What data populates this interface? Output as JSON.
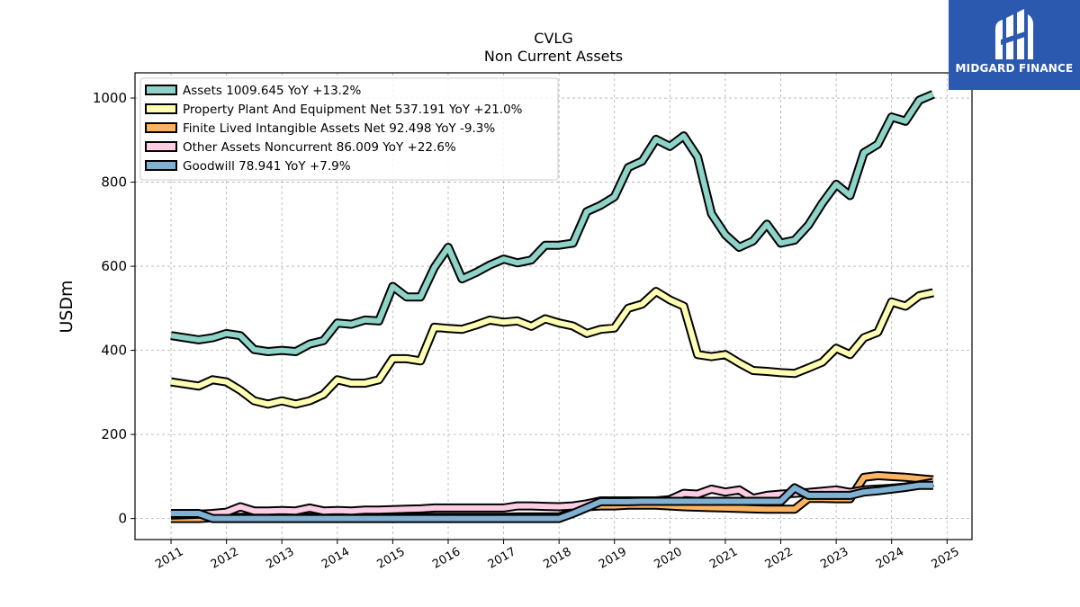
{
  "chart_data": {
    "type": "line",
    "title": "CVLG",
    "subtitle": "Non Current  Assets",
    "ylabel": "USDm",
    "xlabel": "",
    "ylim": [
      -50,
      1060
    ],
    "xlim": [
      2010.35,
      2025.45
    ],
    "yticks": [
      0,
      200,
      400,
      600,
      800,
      1000
    ],
    "xticks": [
      "2011",
      "2012",
      "2013",
      "2014",
      "2015",
      "2016",
      "2017",
      "2018",
      "2019",
      "2020",
      "2021",
      "2022",
      "2023",
      "2024",
      "2025"
    ],
    "grid": true,
    "legend_position": "top-left",
    "series": [
      {
        "name": "Assets",
        "legend_label": "Assets  1009.645 YoY +13.2%",
        "color": "#8dd3c7",
        "x": [
          2011.0,
          2011.5,
          2011.75,
          2012.0,
          2012.25,
          2012.5,
          2012.75,
          2013.0,
          2013.25,
          2013.5,
          2013.75,
          2014.0,
          2014.25,
          2014.5,
          2014.75,
          2015.0,
          2015.25,
          2015.5,
          2015.75,
          2016.0,
          2016.25,
          2016.5,
          2016.75,
          2017.0,
          2017.25,
          2017.5,
          2017.75,
          2018.0,
          2018.25,
          2018.5,
          2018.75,
          2019.0,
          2019.25,
          2019.5,
          2019.75,
          2020.0,
          2020.25,
          2020.5,
          2020.75,
          2021.0,
          2021.25,
          2021.5,
          2021.75,
          2022.0,
          2022.25,
          2022.5,
          2022.75,
          2023.0,
          2023.25,
          2023.5,
          2023.75,
          2024.0,
          2024.25,
          2024.5,
          2024.75
        ],
        "values": [
          435,
          425,
          430,
          440,
          435,
          402,
          397,
          400,
          397,
          415,
          423,
          465,
          462,
          472,
          470,
          552,
          527,
          527,
          597,
          645,
          570,
          585,
          603,
          617,
          608,
          615,
          650,
          650,
          655,
          730,
          745,
          765,
          835,
          850,
          902,
          885,
          910,
          860,
          725,
          675,
          645,
          660,
          700,
          655,
          662,
          698,
          750,
          795,
          768,
          870,
          890,
          955,
          945,
          995,
          1009
        ]
      },
      {
        "name": "Property Plant And Equipment Net",
        "legend_label": "Property Plant And Equipment Net  537.191 YoY +21.0%",
        "color": "#ffffb3",
        "x": [
          2011.0,
          2011.5,
          2011.75,
          2012.0,
          2012.25,
          2012.5,
          2012.75,
          2013.0,
          2013.25,
          2013.5,
          2013.75,
          2014.0,
          2014.25,
          2014.5,
          2014.75,
          2015.0,
          2015.25,
          2015.5,
          2015.75,
          2016.0,
          2016.25,
          2016.5,
          2016.75,
          2017.0,
          2017.25,
          2017.5,
          2017.75,
          2018.0,
          2018.25,
          2018.5,
          2018.75,
          2019.0,
          2019.25,
          2019.5,
          2019.75,
          2020.0,
          2020.25,
          2020.5,
          2020.75,
          2021.0,
          2021.25,
          2021.5,
          2021.75,
          2022.0,
          2022.25,
          2022.5,
          2022.75,
          2023.0,
          2023.25,
          2023.5,
          2023.75,
          2024.0,
          2024.25,
          2024.5,
          2024.75
        ],
        "values": [
          325,
          315,
          330,
          325,
          305,
          280,
          272,
          280,
          272,
          280,
          295,
          330,
          322,
          322,
          330,
          380,
          380,
          375,
          455,
          452,
          450,
          460,
          472,
          467,
          470,
          457,
          475,
          465,
          458,
          440,
          450,
          453,
          500,
          510,
          540,
          520,
          505,
          390,
          385,
          390,
          370,
          352,
          350,
          347,
          345,
          358,
          372,
          405,
          390,
          430,
          443,
          515,
          505,
          530,
          537
        ]
      },
      {
        "name": "Finite Lived Intangible Assets Net",
        "legend_label": "Finite Lived Intangible Assets Net  92.498 YoY -9.3%",
        "color": "#fdb462",
        "x": [
          2011.0,
          2011.5,
          2011.75,
          2012.0,
          2012.25,
          2012.5,
          2012.75,
          2013.0,
          2013.25,
          2013.5,
          2013.75,
          2014.0,
          2014.25,
          2014.5,
          2014.75,
          2015.0,
          2015.25,
          2015.5,
          2015.75,
          2016.0,
          2016.25,
          2016.5,
          2016.75,
          2017.0,
          2017.25,
          2017.5,
          2017.75,
          2018.0,
          2018.25,
          2018.5,
          2018.75,
          2019.0,
          2019.25,
          2019.5,
          2019.75,
          2020.0,
          2020.25,
          2020.5,
          2020.75,
          2021.0,
          2021.25,
          2021.5,
          2021.75,
          2022.0,
          2022.25,
          2022.5,
          2022.75,
          2023.0,
          2023.25,
          2023.5,
          2023.75,
          2024.0,
          2024.25,
          2024.5,
          2024.75
        ],
        "values": [
          0,
          0,
          2,
          2,
          3,
          3,
          3,
          3,
          3,
          3,
          3,
          3,
          3,
          3,
          3,
          3,
          3,
          3,
          3,
          3,
          3,
          3,
          3,
          3,
          4,
          4,
          4,
          4,
          15,
          28,
          30,
          30,
          32,
          32,
          32,
          30,
          28,
          27,
          26,
          25,
          24,
          23,
          22,
          22,
          22,
          48,
          48,
          47,
          47,
          98,
          102,
          100,
          98,
          95,
          92
        ]
      },
      {
        "name": "Other Assets Noncurrent",
        "legend_label": "Other Assets Noncurrent  86.009 YoY +22.6%",
        "color": "#fccde5",
        "x": [
          2011.0,
          2011.5,
          2011.75,
          2012.0,
          2012.25,
          2012.5,
          2012.75,
          2013.0,
          2013.25,
          2013.5,
          2013.75,
          2014.0,
          2014.25,
          2014.5,
          2014.75,
          2015.0,
          2015.25,
          2015.5,
          2015.75,
          2016.0,
          2016.25,
          2016.5,
          2016.75,
          2017.0,
          2017.25,
          2017.5,
          2017.75,
          2018.0,
          2018.25,
          2018.5,
          2018.75,
          2019.0,
          2019.25,
          2019.5,
          2019.75,
          2020.0,
          2020.25,
          2020.5,
          2020.75,
          2021.0,
          2021.25,
          2021.5,
          2021.75,
          2022.0,
          2022.25,
          2022.5,
          2022.75,
          2023.0,
          2023.25,
          2023.5,
          2023.75,
          2024.0,
          2024.25,
          2024.5,
          2024.75
        ],
        "values": [
          8,
          10,
          12,
          15,
          28,
          18,
          18,
          19,
          18,
          25,
          18,
          19,
          18,
          20,
          20,
          21,
          22,
          23,
          25,
          25,
          25,
          25,
          25,
          25,
          30,
          30,
          29,
          28,
          30,
          35,
          42,
          42,
          42,
          42,
          42,
          45,
          60,
          58,
          70,
          63,
          68,
          48,
          55,
          58,
          60,
          62,
          65,
          68,
          62,
          68,
          70,
          72,
          75,
          80,
          86
        ]
      },
      {
        "name": "Goodwill",
        "legend_label": "Goodwill  78.941 YoY +7.9%",
        "color": "#80b1d3",
        "x": [
          2011.0,
          2011.5,
          2011.75,
          2012.0,
          2012.25,
          2012.5,
          2012.75,
          2013.0,
          2013.25,
          2013.5,
          2013.75,
          2014.0,
          2014.25,
          2014.5,
          2014.75,
          2015.0,
          2015.25,
          2015.5,
          2015.75,
          2016.0,
          2016.25,
          2016.5,
          2016.75,
          2017.0,
          2017.25,
          2017.5,
          2017.75,
          2018.0,
          2018.25,
          2018.5,
          2018.75,
          2019.0,
          2019.25,
          2019.5,
          2019.75,
          2020.0,
          2020.25,
          2020.5,
          2020.75,
          2021.0,
          2021.25,
          2021.5,
          2021.75,
          2022.0,
          2022.25,
          2022.5,
          2022.75,
          2023.0,
          2023.25,
          2023.5,
          2023.75,
          2024.0,
          2024.25,
          2024.5,
          2024.75
        ],
        "values": [
          12,
          12,
          0,
          0,
          0,
          0,
          0,
          0,
          0,
          0,
          0,
          0,
          0,
          0,
          0,
          0,
          0,
          0,
          0,
          0,
          0,
          0,
          0,
          0,
          0,
          0,
          0,
          0,
          12,
          26,
          40,
          40,
          40,
          41,
          41,
          41,
          41,
          41,
          41,
          41,
          41,
          41,
          41,
          41,
          73,
          55,
          55,
          55,
          55,
          63,
          66,
          70,
          74,
          79,
          79
        ]
      }
    ]
  },
  "logo": {
    "text": "MIDGARD FINANCE"
  }
}
